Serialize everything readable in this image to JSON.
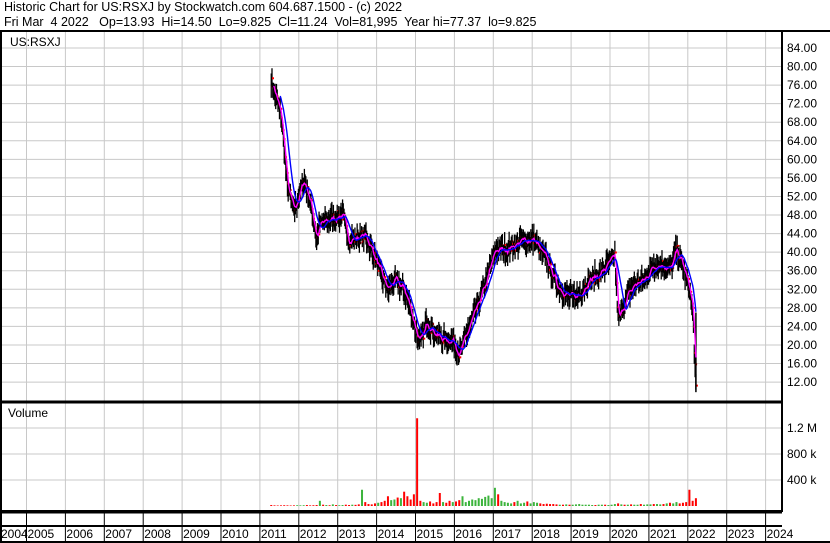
{
  "header": {
    "line1": "Historic Chart for US:RSXJ by Stockwatch.com 604.687.1500 - (c) 2022",
    "line2": "Fri Mar  4 2022   Op=13.93  Hi=14.50  Lo=9.825  Cl=11.24  Vol=81,995  Year hi=77.37  lo=9.825"
  },
  "chart_data": [
    {
      "type": "line",
      "title": "US:RSXJ",
      "series_style": "high-low bars with moving averages",
      "colors": {
        "bars": "#000000",
        "close_tick": "#ff0000",
        "ma_short": "#ff00ff",
        "ma_long": "#0000ff",
        "grid": "#c8c8c8"
      },
      "ylim": [
        8,
        87.5
      ],
      "yticks": [
        "84.00",
        "80.00",
        "76.00",
        "72.00",
        "68.00",
        "64.00",
        "60.00",
        "56.00",
        "52.00",
        "48.00",
        "44.00",
        "40.00",
        "36.00",
        "32.00",
        "28.00",
        "24.00",
        "20.00",
        "16.00",
        "12.00"
      ],
      "grid": true,
      "close": [
        [
          "2011-04",
          77
        ],
        [
          "2011-07",
          69.5
        ],
        [
          "2011-08",
          62
        ],
        [
          "2011-09",
          54
        ],
        [
          "2011-11",
          49
        ],
        [
          "2012-02",
          55.5
        ],
        [
          "2012-04",
          51
        ],
        [
          "2012-06",
          43
        ],
        [
          "2012-07",
          46
        ],
        [
          "2012-10",
          47
        ],
        [
          "2013-02",
          48
        ],
        [
          "2013-04",
          42.5
        ],
        [
          "2013-09",
          43.7
        ],
        [
          "2013-11",
          40.5
        ],
        [
          "2014-02",
          35
        ],
        [
          "2014-04",
          32
        ],
        [
          "2014-06",
          34
        ],
        [
          "2014-09",
          32
        ],
        [
          "2014-11",
          27.5
        ],
        [
          "2015-01",
          22
        ],
        [
          "2015-02",
          20.6
        ],
        [
          "2015-04",
          25
        ],
        [
          "2015-07",
          22
        ],
        [
          "2015-10",
          21
        ],
        [
          "2015-12",
          21
        ],
        [
          "2016-02",
          18
        ],
        [
          "2016-04",
          22
        ],
        [
          "2016-07",
          27.5
        ],
        [
          "2016-10",
          33
        ],
        [
          "2017-01",
          40.5
        ],
        [
          "2017-04",
          40.5
        ],
        [
          "2017-07",
          41.5
        ],
        [
          "2017-10",
          42.6
        ],
        [
          "2018-01",
          42.6
        ],
        [
          "2018-05",
          38.3
        ],
        [
          "2018-08",
          33
        ],
        [
          "2018-11",
          30.8
        ],
        [
          "2019-01",
          30.3
        ],
        [
          "2019-03",
          30.8
        ],
        [
          "2019-06",
          34
        ],
        [
          "2019-09",
          35
        ],
        [
          "2020-01",
          38.3
        ],
        [
          "2020-02",
          39.4
        ],
        [
          "2020-03",
          25.4
        ],
        [
          "2020-06",
          30.8
        ],
        [
          "2020-08",
          33
        ],
        [
          "2020-11",
          34
        ],
        [
          "2021-02",
          37.2
        ],
        [
          "2021-05",
          37.2
        ],
        [
          "2021-07",
          36.1
        ],
        [
          "2021-09",
          40.5
        ],
        [
          "2021-11",
          37
        ],
        [
          "2022-01",
          32
        ],
        [
          "2022-02",
          27.5
        ],
        [
          "2022-03",
          11.24
        ]
      ]
    },
    {
      "type": "bar",
      "title": "Volume",
      "yticks": [
        "1.2 M",
        "800 k",
        "400 k"
      ],
      "ytick_values": [
        1200000,
        800000,
        400000
      ],
      "colors": {
        "up": "#3cb43c",
        "down": "#ff0000"
      },
      "start": "2011-04",
      "values_k": [
        15,
        10,
        8,
        10,
        12,
        10,
        8,
        10,
        12,
        10,
        12,
        15,
        10,
        12,
        15,
        80,
        20,
        15,
        12,
        25,
        15,
        12,
        15,
        20,
        15,
        20,
        18,
        25,
        250,
        60,
        30,
        25,
        40,
        50,
        60,
        80,
        150,
        90,
        100,
        130,
        120,
        220,
        150,
        100,
        180,
        1350,
        80,
        60,
        50,
        70,
        40,
        60,
        200,
        60,
        50,
        80,
        60,
        70,
        90,
        150,
        60,
        80,
        100,
        90,
        120,
        110,
        140,
        160,
        120,
        280,
        180,
        80,
        60,
        50,
        40,
        60,
        80,
        40,
        50,
        70,
        40,
        60,
        50,
        40,
        30,
        35,
        30,
        30,
        25,
        20,
        20,
        25,
        20,
        20,
        25,
        30,
        20,
        20,
        20,
        15,
        15,
        20,
        20,
        20,
        15,
        20,
        30,
        40,
        25,
        20,
        20,
        25,
        20,
        20,
        30,
        20,
        25,
        25,
        30,
        30,
        25,
        30,
        40,
        50,
        40,
        60,
        40,
        50,
        60,
        250,
        80,
        120
      ]
    }
  ],
  "x_axis": {
    "years": [
      "2004",
      "2005",
      "2006",
      "2007",
      "2008",
      "2009",
      "2010",
      "2011",
      "2012",
      "2013",
      "2014",
      "2015",
      "2016",
      "2017",
      "2018",
      "2019",
      "2020",
      "2021",
      "2022",
      "2023",
      "2024"
    ]
  }
}
